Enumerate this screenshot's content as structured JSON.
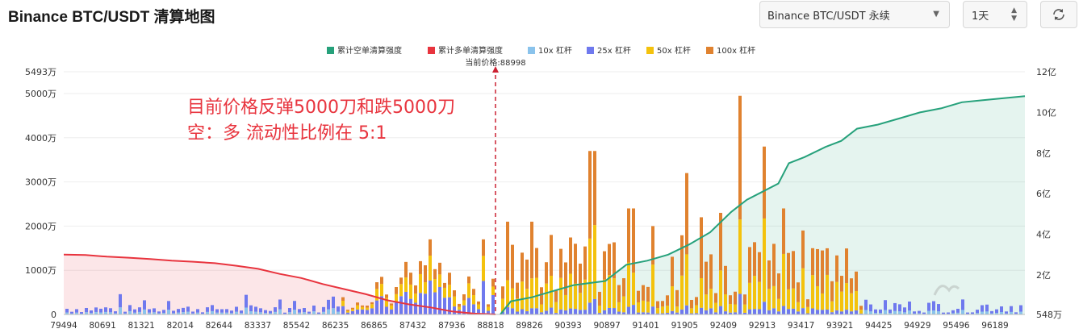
{
  "header": {
    "title": "Binance BTC/USDT 清算地图",
    "market_select": "Binance BTC/USDT 永续",
    "period_select": "1天",
    "refresh_icon": "refresh-icon"
  },
  "colors": {
    "short_cum": "#26a17b",
    "long_cum": "#e8343e",
    "lev10": "#8ac3ec",
    "lev25": "#6f79ee",
    "lev50": "#f4c20d",
    "lev100": "#e0822f"
  },
  "chart_data": {
    "type": "bar",
    "legend": [
      {
        "key": "short_cum",
        "label": "累计空单清算强度"
      },
      {
        "key": "long_cum",
        "label": "累计多单清算强度"
      },
      {
        "key": "lev10",
        "label": "10x 杠杆"
      },
      {
        "key": "lev25",
        "label": "25x 杠杆"
      },
      {
        "key": "lev50",
        "label": "50x 杠杆"
      },
      {
        "key": "lev100",
        "label": "100x 杠杆"
      }
    ],
    "current_price_label": "当前价格:88998",
    "current_price": 88998,
    "x_range": [
      79494,
      97000
    ],
    "x_ticks": [
      "79494",
      "80691",
      "81321",
      "82014",
      "82644",
      "83337",
      "85542",
      "86235",
      "86865",
      "87432",
      "87936",
      "88818",
      "89826",
      "90393",
      "90897",
      "91401",
      "91905",
      "92409",
      "92913",
      "93417",
      "93921",
      "94425",
      "94929",
      "95496",
      "96189"
    ],
    "y_left": {
      "range": [
        0,
        5493
      ],
      "unit": "万",
      "ticks": [
        "0",
        "1000万",
        "2000万",
        "3000万",
        "4000万",
        "5000万",
        "5493万"
      ]
    },
    "y_right": {
      "range": [
        0.0548,
        12
      ],
      "unit": "亿",
      "ticks": [
        "548万",
        "2亿",
        "4亿",
        "6亿",
        "8亿",
        "10亿",
        "12亿"
      ]
    },
    "annotation": {
      "line1": "目前价格反弹5000刀和跌5000刀",
      "line2": "空：多  流动性比例在      5:1"
    },
    "long_cum_points": [
      [
        0,
        3.0
      ],
      [
        0.05,
        2.98
      ],
      [
        0.1,
        2.9
      ],
      [
        0.15,
        2.85
      ],
      [
        0.2,
        2.78
      ],
      [
        0.25,
        2.7
      ],
      [
        0.3,
        2.65
      ],
      [
        0.35,
        2.58
      ],
      [
        0.4,
        2.45
      ],
      [
        0.45,
        2.3
      ],
      [
        0.5,
        2.05
      ],
      [
        0.55,
        1.85
      ],
      [
        0.6,
        1.55
      ],
      [
        0.65,
        1.3
      ],
      [
        0.7,
        1.05
      ],
      [
        0.75,
        0.75
      ],
      [
        0.8,
        0.55
      ],
      [
        0.85,
        0.4
      ],
      [
        0.9,
        0.2
      ],
      [
        0.95,
        0.1
      ],
      [
        1,
        0.06
      ]
    ],
    "short_cum_points": [
      [
        0,
        0.06
      ],
      [
        0.02,
        0.7
      ],
      [
        0.06,
        0.9
      ],
      [
        0.1,
        1.2
      ],
      [
        0.14,
        1.5
      ],
      [
        0.2,
        1.7
      ],
      [
        0.24,
        2.5
      ],
      [
        0.28,
        2.7
      ],
      [
        0.32,
        3.0
      ],
      [
        0.36,
        3.5
      ],
      [
        0.4,
        4.1
      ],
      [
        0.44,
        5.1
      ],
      [
        0.47,
        5.7
      ],
      [
        0.5,
        6.1
      ],
      [
        0.53,
        6.5
      ],
      [
        0.55,
        7.5
      ],
      [
        0.58,
        7.8
      ],
      [
        0.62,
        8.3
      ],
      [
        0.65,
        8.6
      ],
      [
        0.68,
        9.2
      ],
      [
        0.72,
        9.4
      ],
      [
        0.76,
        9.7
      ],
      [
        0.8,
        10.0
      ],
      [
        0.84,
        10.2
      ],
      [
        0.88,
        10.5
      ],
      [
        0.92,
        10.6
      ],
      [
        0.96,
        10.7
      ],
      [
        1,
        10.8
      ]
    ]
  }
}
